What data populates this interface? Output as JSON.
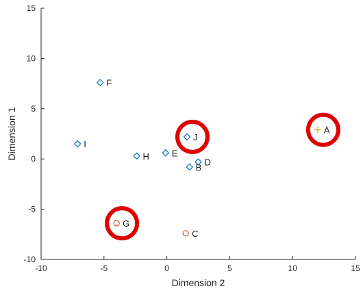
{
  "chart_data": {
    "type": "scatter",
    "title": "",
    "xlabel": "Dimension 2",
    "ylabel": "Dimension 1",
    "xlim": [
      -10,
      15
    ],
    "ylim": [
      -10,
      15
    ],
    "xticks": [
      -10,
      -5,
      0,
      5,
      10,
      15
    ],
    "yticks": [
      -10,
      -5,
      0,
      5,
      10,
      15
    ],
    "grid": false,
    "points": [
      {
        "label": "A",
        "x": 12.0,
        "y": 2.9,
        "marker": "plus",
        "color": "#EDB120",
        "highlighted": true
      },
      {
        "label": "B",
        "x": 1.8,
        "y": -0.8,
        "marker": "diamond",
        "color": "#0072BD",
        "highlighted": false
      },
      {
        "label": "C",
        "x": 1.5,
        "y": -7.4,
        "marker": "circle",
        "color": "#D95319",
        "highlighted": false
      },
      {
        "label": "D",
        "x": 2.5,
        "y": -0.3,
        "marker": "diamond",
        "color": "#0072BD",
        "highlighted": false
      },
      {
        "label": "E",
        "x": -0.1,
        "y": 0.6,
        "marker": "diamond",
        "color": "#0072BD",
        "highlighted": false
      },
      {
        "label": "F",
        "x": -5.3,
        "y": 7.6,
        "marker": "diamond",
        "color": "#0072BD",
        "highlighted": false
      },
      {
        "label": "G",
        "x": -4.0,
        "y": -6.4,
        "marker": "circle",
        "color": "#D95319",
        "highlighted": true
      },
      {
        "label": "H",
        "x": -2.4,
        "y": 0.3,
        "marker": "diamond",
        "color": "#0072BD",
        "highlighted": false
      },
      {
        "label": "I",
        "x": -7.1,
        "y": 1.5,
        "marker": "diamond",
        "color": "#0072BD",
        "highlighted": false
      },
      {
        "label": "J",
        "x": 1.6,
        "y": 2.2,
        "marker": "diamond",
        "color": "#0072BD",
        "highlighted": true
      }
    ],
    "highlight_color": "#E00000"
  }
}
